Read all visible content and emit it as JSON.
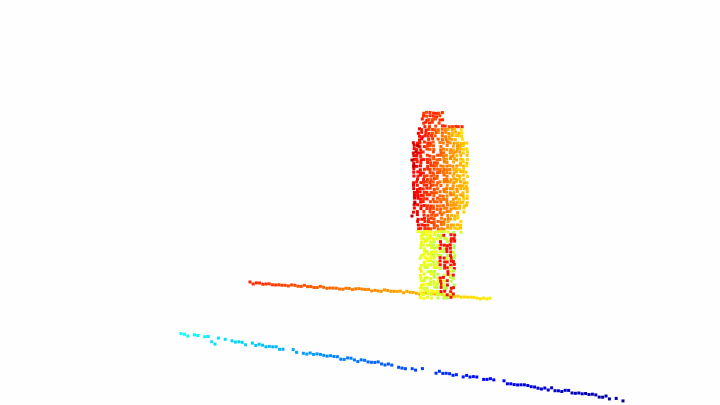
{
  "viewer": {
    "background_color": "#fdfefd",
    "colormap": "jet",
    "colormap_stops": [
      "#00007f",
      "#0000ff",
      "#0080ff",
      "#00ffff",
      "#80ff80",
      "#ffff00",
      "#ff8000",
      "#ff0000",
      "#7f0000"
    ]
  },
  "point_cloud": {
    "segments": [
      "figure",
      "back-scan-line",
      "front-scan-line"
    ],
    "colors": {
      "figure_top": "#ff9a00",
      "figure_mid": "#e8f000",
      "figure_legs": "#a0ff50",
      "figure_edge": "#ff3000",
      "back_line_left": "#ff4a00",
      "back_line_right": "#f0ff10",
      "front_line_left": "#00c8ff",
      "front_line_mid": "#0070ff",
      "front_line_right": "#0010b0"
    }
  }
}
